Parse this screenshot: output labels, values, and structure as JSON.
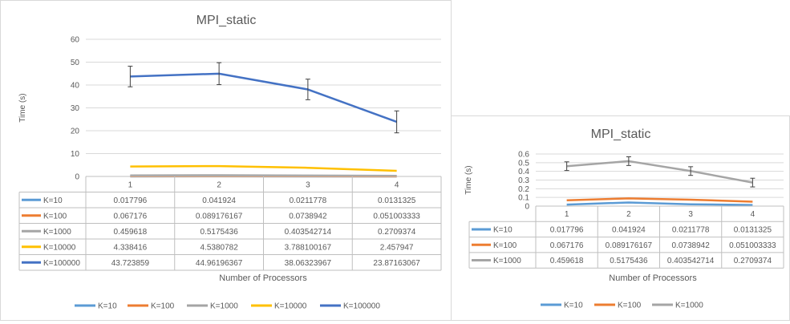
{
  "chart_data": [
    {
      "type": "line",
      "title": "MPI_static",
      "xlabel": "Number of Processors",
      "ylabel": "Time (s)",
      "ylim": [
        0,
        60
      ],
      "yticks": [
        "0",
        "10",
        "20",
        "30",
        "40",
        "50",
        "60"
      ],
      "categories": [
        "1",
        "2",
        "3",
        "4"
      ],
      "grid": true,
      "legend": "bottom",
      "error_bars": true,
      "series": [
        {
          "name": "K=10",
          "color": "#5B9BD5",
          "labels": [
            "0.017796",
            "0.041924",
            "0.0211778",
            "0.0131325"
          ],
          "values": [
            0.017796,
            0.041924,
            0.0211778,
            0.0131325
          ]
        },
        {
          "name": "K=100",
          "color": "#ED7D31",
          "labels": [
            "0.067176",
            "0.089176167",
            "0.0738942",
            "0.051003333"
          ],
          "values": [
            0.067176,
            0.089176167,
            0.0738942,
            0.051003333
          ]
        },
        {
          "name": "K=1000",
          "color": "#A5A5A5",
          "labels": [
            "0.459618",
            "0.5175436",
            "0.403542714",
            "0.2709374"
          ],
          "values": [
            0.459618,
            0.5175436,
            0.403542714,
            0.2709374
          ]
        },
        {
          "name": "K=10000",
          "color": "#FFC000",
          "labels": [
            "4.338416",
            "4.5380782",
            "3.788100167",
            "2.457947"
          ],
          "values": [
            4.338416,
            4.5380782,
            3.788100167,
            2.457947
          ]
        },
        {
          "name": "K=100000",
          "color": "#4472C4",
          "labels": [
            "43.723859",
            "44.96196367",
            "38.06323967",
            "23.87163067"
          ],
          "values": [
            43.723859,
            44.96196367,
            38.06323967,
            23.87163067
          ],
          "error": [
            4.5,
            4.8,
            4.5,
            4.8
          ]
        }
      ]
    },
    {
      "type": "line",
      "title": "MPI_static",
      "xlabel": "Number of Processors",
      "ylabel": "Time (s)",
      "ylim": [
        0,
        0.6
      ],
      "yticks": [
        "0",
        "0.1",
        "0.2",
        "0.3",
        "0.4",
        "0.5",
        "0.6"
      ],
      "categories": [
        "1",
        "2",
        "3",
        "4"
      ],
      "grid": true,
      "legend": "bottom",
      "error_bars": true,
      "series": [
        {
          "name": "K=10",
          "color": "#5B9BD5",
          "labels": [
            "0.017796",
            "0.041924",
            "0.0211778",
            "0.0131325"
          ],
          "values": [
            0.017796,
            0.041924,
            0.0211778,
            0.0131325
          ]
        },
        {
          "name": "K=100",
          "color": "#ED7D31",
          "labels": [
            "0.067176",
            "0.089176167",
            "0.0738942",
            "0.051003333"
          ],
          "values": [
            0.067176,
            0.089176167,
            0.0738942,
            0.051003333
          ]
        },
        {
          "name": "K=1000",
          "color": "#A5A5A5",
          "labels": [
            "0.459618",
            "0.5175436",
            "0.403542714",
            "0.2709374"
          ],
          "values": [
            0.459618,
            0.5175436,
            0.403542714,
            0.2709374
          ],
          "error": [
            0.05,
            0.05,
            0.05,
            0.05
          ]
        }
      ]
    }
  ]
}
